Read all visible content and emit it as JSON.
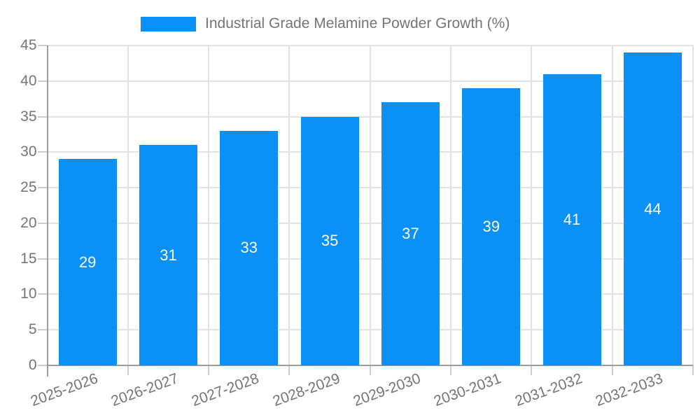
{
  "chart_data": {
    "type": "bar",
    "title": "Industrial Grade Melamine Powder Growth (%)",
    "legend": [
      "Industrial Grade Melamine Powder Growth (%)"
    ],
    "legend_position": "top-center",
    "categories": [
      "2025-2026",
      "2026-2027",
      "2027-2028",
      "2028-2029",
      "2029-2030",
      "2030-2031",
      "2031-2032",
      "2032-2033"
    ],
    "values": [
      29,
      31,
      33,
      35,
      37,
      39,
      41,
      44
    ],
    "xlabel": "",
    "ylabel": "",
    "ylim": [
      0,
      45
    ],
    "yticks": [
      0,
      5,
      10,
      15,
      20,
      25,
      30,
      35,
      40,
      45
    ],
    "grid": "horizontal and vertical gridlines",
    "bar_labels_inside": true,
    "x_label_rotation_deg": -20
  },
  "colors": {
    "bar": "#0991F8",
    "bar_value_label": "#ffffff",
    "axis_text": "#757575",
    "legend_text": "#757575",
    "gridline": "#e3e3e3",
    "axis_line": "#9e9e9e",
    "tick_mark": "#cccccc",
    "background": "#ffffff"
  }
}
